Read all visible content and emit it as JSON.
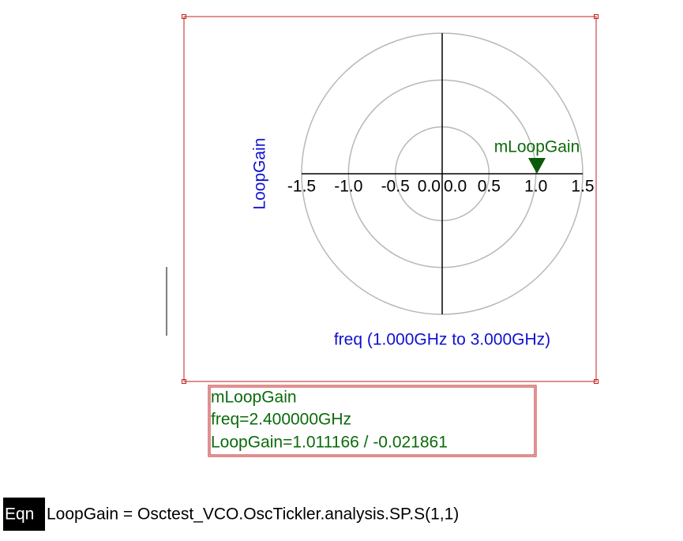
{
  "chart_data": {
    "type": "polar",
    "y_label": "LoopGain",
    "x_label": "freq (1.000GHz to 3.000GHz)",
    "rlim": [
      0,
      1.5
    ],
    "xticks": [
      -1.5,
      {
        "value": -1,
        "label": "-1.0"
      },
      -0.5,
      {
        "value": 0,
        "label": "0.0"
      },
      {
        "value": 0,
        "label": "0.0"
      },
      0.5,
      {
        "value": 1,
        "label": "1.0"
      },
      1.5
    ],
    "grid": true,
    "marker": {
      "name": "mLoopGain",
      "magnitude": 1.011166,
      "angle": -0.021861,
      "color": "#0b5a0b",
      "readout": [
        "mLoopGain",
        "freq=2.400000GHz",
        "LoopGain=1.011166 / -0.021861"
      ]
    },
    "equation": {
      "tag": "Eqn",
      "text": "LoopGain = Osctest_VCO.OscTickler.analysis.SP.S(1,1)"
    }
  }
}
